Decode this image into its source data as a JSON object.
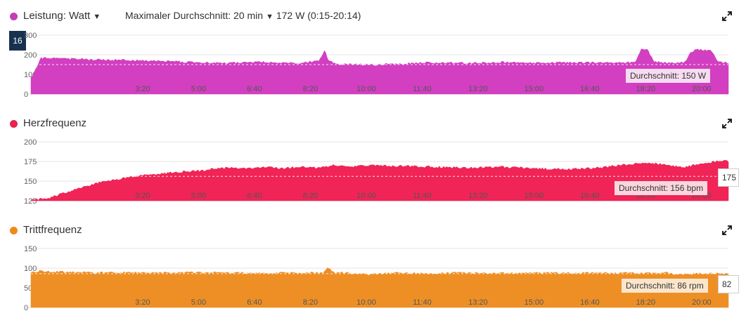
{
  "header": {
    "metric_label": "Leistung: Watt",
    "avg_label": "Maximaler Durchschnitt: 20 min",
    "avg_value": "172 W (0:15-20:14)"
  },
  "cursor_value": "16",
  "chart_data": [
    {
      "type": "area",
      "title": "Leistung: Watt",
      "color": "#d23fc0",
      "x_ticks": [
        "3:20",
        "5:00",
        "6:40",
        "8:20",
        "10:00",
        "11:40",
        "13:20",
        "15:00",
        "16:40",
        "18:20",
        "20:00"
      ],
      "yticks": [
        "300",
        "200",
        "100",
        "0"
      ],
      "ylim": [
        0,
        300
      ],
      "xlim_min": [
        0,
        20.8
      ],
      "average": 150,
      "average_label": "Durchschnitt: 150 W",
      "series": {
        "x_min": [
          0,
          0.3,
          1,
          2,
          3,
          4,
          5,
          6,
          7,
          7.5,
          8,
          8.6,
          8.75,
          8.9,
          9.2,
          9.8,
          10.2,
          11,
          12,
          13,
          14,
          15,
          16,
          17,
          17.8,
          18.05,
          18.2,
          18.35,
          18.6,
          19,
          19.5,
          19.7,
          19.85,
          20.3,
          20.5,
          20.8
        ],
        "y": [
          80,
          182,
          180,
          175,
          172,
          168,
          160,
          158,
          162,
          160,
          158,
          170,
          220,
          165,
          152,
          150,
          148,
          155,
          160,
          158,
          162,
          158,
          160,
          158,
          160,
          168,
          225,
          232,
          165,
          158,
          162,
          215,
          228,
          218,
          165,
          160
        ]
      }
    },
    {
      "type": "area",
      "title": "Herzfrequenz",
      "color": "#f02456",
      "x_ticks": [
        "3:20",
        "5:00",
        "6:40",
        "8:20",
        "10:00",
        "11:40",
        "13:20",
        "15:00",
        "16:40",
        "18:20",
        "20:00"
      ],
      "yticks": [
        "200",
        "175",
        "150",
        "125"
      ],
      "ylim": [
        125,
        200
      ],
      "xlim_min": [
        0,
        20.8
      ],
      "average": 156,
      "average_label": "Durchschnitt: 156 bpm",
      "tooltip_value": "175",
      "series": {
        "x_min": [
          0,
          0.5,
          1,
          1.5,
          2,
          2.5,
          3,
          3.5,
          4,
          4.5,
          5,
          5.5,
          6,
          6.5,
          7,
          7.5,
          8,
          8.5,
          9,
          9.5,
          10,
          11,
          12,
          13,
          14,
          15,
          16,
          17,
          17.5,
          18,
          18.5,
          19,
          19.5,
          20,
          20.3,
          20.6,
          20.8
        ],
        "y": [
          126,
          128,
          135,
          142,
          148,
          152,
          155,
          158,
          160,
          162,
          163,
          166,
          167,
          166,
          168,
          166,
          168,
          167,
          170,
          168,
          170,
          169,
          168,
          167,
          168,
          166,
          165,
          167,
          170,
          172,
          173,
          170,
          168,
          172,
          174,
          176,
          175
        ]
      }
    },
    {
      "type": "area",
      "title": "Trittfrequenz",
      "color": "#ee8f25",
      "x_ticks": [
        "3:20",
        "5:00",
        "6:40",
        "8:20",
        "10:00",
        "11:40",
        "13:20",
        "15:00",
        "16:40",
        "18:20",
        "20:00"
      ],
      "yticks": [
        "150",
        "100",
        "50",
        "0"
      ],
      "ylim": [
        0,
        150
      ],
      "xlim_min": [
        0,
        20.8
      ],
      "average": 86,
      "average_label": "Durchschnitt: 86 rpm",
      "tooltip_value": "82",
      "series": {
        "x_min": [
          0,
          0.3,
          1,
          2,
          3,
          4,
          5,
          6,
          7,
          8,
          8.7,
          8.85,
          9,
          9.3,
          10,
          11,
          12,
          13,
          14,
          15,
          16,
          17,
          18,
          19,
          19.2,
          20,
          20.8
        ],
        "y": [
          88,
          92,
          90,
          88,
          89,
          88,
          89,
          88,
          87,
          88,
          88,
          102,
          90,
          88,
          84,
          88,
          87,
          88,
          87,
          88,
          87,
          88,
          87,
          88,
          84,
          86,
          85
        ]
      }
    }
  ]
}
